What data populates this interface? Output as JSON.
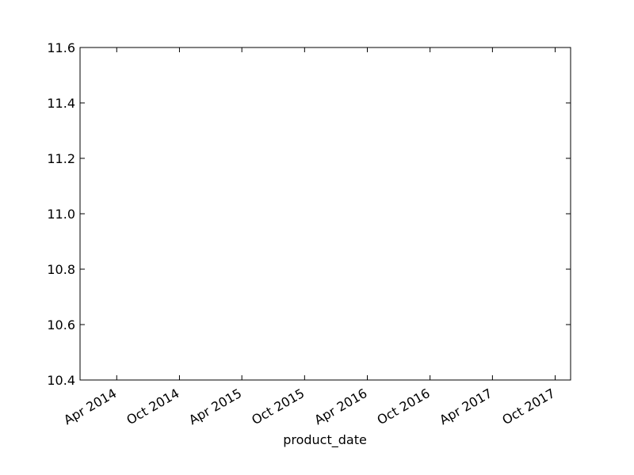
{
  "chart_data": {
    "type": "line",
    "title": "",
    "xlabel": "product_date",
    "ylabel": "",
    "x_axis_type": "date",
    "x_ticks": [
      {
        "date": "2014-04-01",
        "label": "Apr 2014"
      },
      {
        "date": "2014-10-01",
        "label": "Oct 2014"
      },
      {
        "date": "2015-04-01",
        "label": "Apr 2015"
      },
      {
        "date": "2015-10-01",
        "label": "Oct 2015"
      },
      {
        "date": "2016-04-01",
        "label": "Apr 2016"
      },
      {
        "date": "2016-10-01",
        "label": "Oct 2016"
      },
      {
        "date": "2017-04-01",
        "label": "Apr 2017"
      },
      {
        "date": "2017-10-01",
        "label": "Oct 2017"
      }
    ],
    "y_ticks": [
      "10.4",
      "10.6",
      "10.8",
      "11.0",
      "11.2",
      "11.4",
      "11.6"
    ],
    "xlim": [
      "2013-12-15",
      "2017-11-15"
    ],
    "ylim": [
      10.4,
      11.6
    ],
    "grid": false,
    "series": []
  },
  "colors": {
    "axis": "#000000",
    "background": "#ffffff"
  }
}
